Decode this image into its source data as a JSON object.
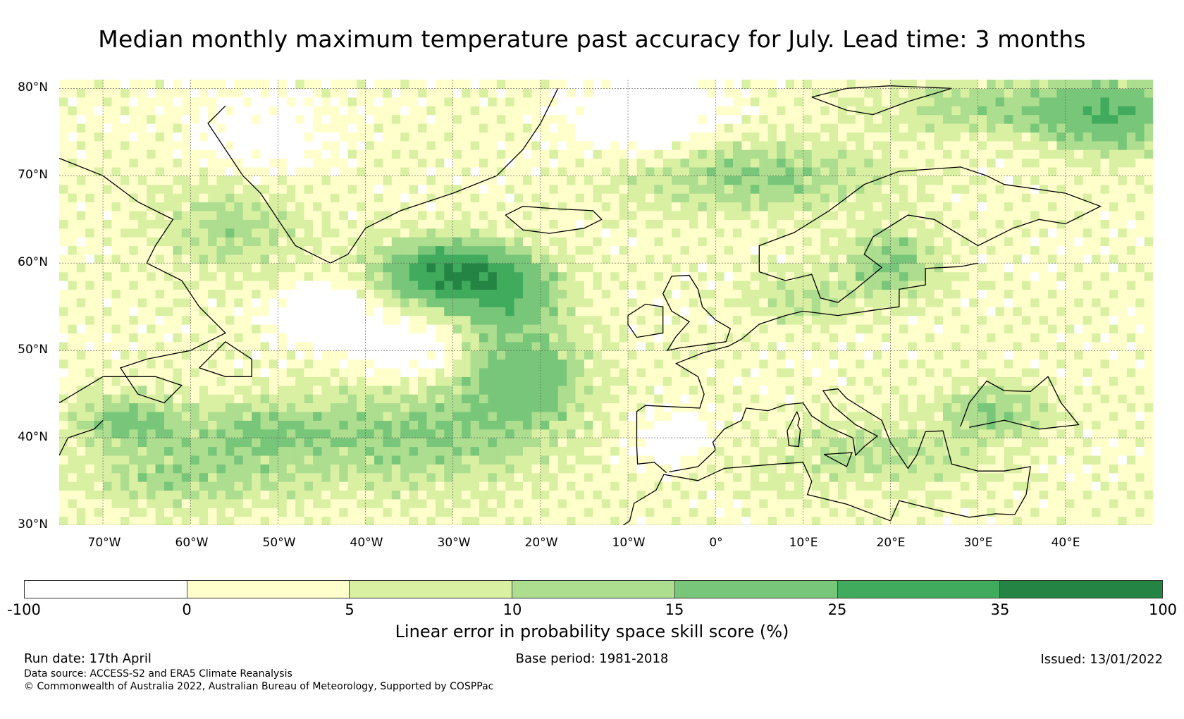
{
  "title": "Median monthly maximum temperature past accuracy for July. Lead time: 3 months",
  "map": {
    "lat_labels": [
      "80°N",
      "70°N",
      "60°N",
      "50°N",
      "40°N",
      "30°N"
    ],
    "lon_labels": [
      "70°W",
      "60°W",
      "50°W",
      "40°W",
      "30°W",
      "20°W",
      "10°W",
      "0°",
      "10°E",
      "20°E",
      "30°E",
      "40°E"
    ],
    "lat_range": [
      30,
      81
    ],
    "lon_range": [
      -75,
      50
    ]
  },
  "colorbar": {
    "label": "Linear error in probability space skill score (%)",
    "ticks": [
      "-100",
      "0",
      "5",
      "10",
      "15",
      "25",
      "35",
      "100"
    ],
    "colors": [
      "#ffffff",
      "#ffffcc",
      "#d9f0a3",
      "#addd8e",
      "#78c679",
      "#41ab5d",
      "#238443"
    ]
  },
  "footer": {
    "run_date": "Run date: 17th April",
    "base_period": "Base period: 1981-2018",
    "issued": "Issued: 13/01/2022",
    "data_source": "Data source: ACCESS-S2 and ERA5 Climate Reanalysis",
    "copyright": "© Commonwealth of Australia 2022, Australian Bureau of Meteorology, Supported by COSPPac"
  }
}
